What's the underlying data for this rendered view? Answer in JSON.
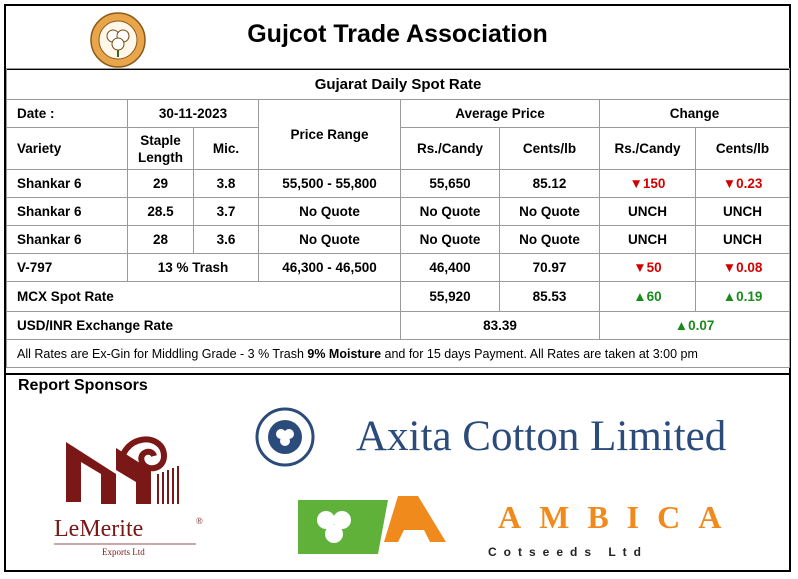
{
  "header": {
    "title": "Gujcot Trade Association",
    "logo_text_top": "Gujcot Trade Association",
    "logo_text_bottom": "Gujarat"
  },
  "table": {
    "subtitle": "Gujarat Daily Spot Rate",
    "date_label": "Date :",
    "date_value": "30-11-2023",
    "col_price_range": "Price Range",
    "col_average_price": "Average Price",
    "col_change": "Change",
    "col_variety": "Variety",
    "col_staple": "Staple Length",
    "col_mic": "Mic.",
    "col_rs_candy": "Rs./Candy",
    "col_cents_lb": "Cents/lb",
    "col_change_rs_candy": "Rs./Candy",
    "col_change_cents_lb": "Cents/lb",
    "rows": [
      {
        "variety": "Shankar 6",
        "staple": "29",
        "mic": "3.8",
        "range": "55,500 - 55,800",
        "avg_rs": "55,650",
        "avg_cents": "85.12",
        "chg_rs": "▼150",
        "chg_cents": "▼0.23"
      },
      {
        "variety": "Shankar 6",
        "staple": "28.5",
        "mic": "3.7",
        "range": "No Quote",
        "avg_rs": "No Quote",
        "avg_cents": "No Quote",
        "chg_rs": "UNCH",
        "chg_cents": "UNCH"
      },
      {
        "variety": "Shankar 6",
        "staple": "28",
        "mic": "3.6",
        "range": "No Quote",
        "avg_rs": "No Quote",
        "avg_cents": "No Quote",
        "chg_rs": "UNCH",
        "chg_cents": "UNCH"
      },
      {
        "variety": "V-797",
        "staple_mic": "13 % Trash",
        "range": "46,300 - 46,500",
        "avg_rs": "46,400",
        "avg_cents": "70.97",
        "chg_rs": "▼50",
        "chg_cents": "▼0.08"
      }
    ],
    "mcx": {
      "label": "MCX Spot Rate",
      "avg_rs": "55,920",
      "avg_cents": "85.53",
      "chg_rs": "▲60",
      "chg_cents": "▲0.19"
    },
    "usd": {
      "label": "USD/INR Exchange Rate",
      "value": "83.39",
      "chg": "▲0.07"
    },
    "note_part1": "All Rates are Ex-Gin for Middling Grade - 3 % Trash ",
    "note_bold": "9% Moisture",
    "note_part2": " and for 15 days Payment. All Rates are taken at 3:00 pm"
  },
  "sponsors": {
    "heading": "Report Sponsors",
    "lemerite_name": "LeMerite",
    "lemerite_reg": "®",
    "lemerite_sub": "Exports Ltd",
    "axita_name": "Axita Cotton Limited",
    "axita_seal_text": "AXITA COTTON LIMITED",
    "ambica_name": "AMBICA",
    "ambica_sub": "Cotseeds Ltd"
  },
  "colors": {
    "down": "#d40000",
    "up": "#1a8a1a",
    "axita": "#2b4b7b",
    "ambica_orange": "#f08a1c",
    "ambica_green": "#5fb13a",
    "lemerite_red": "#7a1818"
  }
}
